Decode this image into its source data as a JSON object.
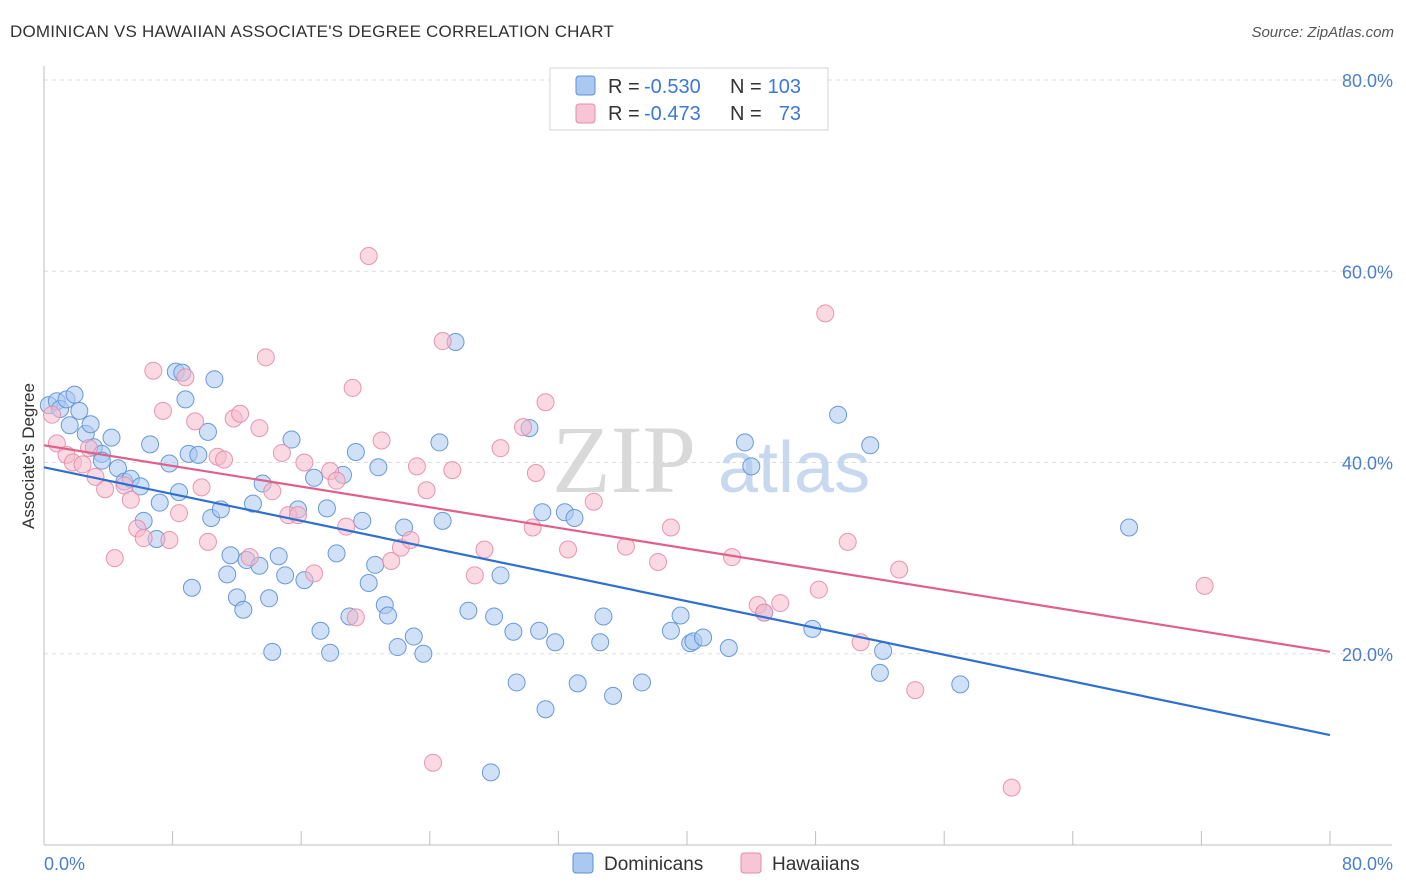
{
  "title": "DOMINICAN VS HAWAIIAN ASSOCIATE'S DEGREE CORRELATION CHART",
  "source": "Source: ZipAtlas.com",
  "colors": {
    "blue_fill": "#aac8f0",
    "blue_stroke": "#5b8fd6",
    "blue_line": "#2f6fd1",
    "pink_fill": "#f7b9cc",
    "pink_stroke": "#e58ba8",
    "pink_line": "#e0608a",
    "grid": "#dddddd",
    "axis_label": "#4a7fd0"
  },
  "legend": {
    "r_label": "R =",
    "n_label": "N =",
    "rows": [
      {
        "r": "-0.530",
        "n": "103"
      },
      {
        "r": "-0.473",
        "n": "73"
      }
    ]
  },
  "watermark": {
    "zip": "ZIP",
    "atlas": "atlas"
  },
  "chart_data": {
    "type": "scatter",
    "title": "DOMINICAN VS HAWAIIAN ASSOCIATE'S DEGREE CORRELATION CHART",
    "xlabel": "",
    "ylabel": "Associate's Degree",
    "xlim": [
      0,
      80
    ],
    "ylim": [
      0,
      80
    ],
    "x_tick_labels": [
      "0.0%",
      "80.0%"
    ],
    "y_tick_labels": [
      "20.0%",
      "40.0%",
      "60.0%",
      "80.0%"
    ],
    "y_ticks": [
      20,
      40,
      60,
      80
    ],
    "grid": true,
    "legend_position": "top-center",
    "series": [
      {
        "name": "Dominicans",
        "color": "#5b8fd6",
        "r": -0.53,
        "n": 103,
        "trend": {
          "x": [
            0,
            80
          ],
          "y": [
            39.5,
            11.5
          ]
        },
        "points": [
          [
            0.3,
            46
          ],
          [
            0.8,
            46.4
          ],
          [
            1,
            45.6
          ],
          [
            1.4,
            46.6
          ],
          [
            1.9,
            47.1
          ],
          [
            2.2,
            45.4
          ],
          [
            1.6,
            43.9
          ],
          [
            2.6,
            43
          ],
          [
            2.9,
            44
          ],
          [
            3.1,
            41.6
          ],
          [
            3.6,
            40.9
          ],
          [
            3.6,
            40.2
          ],
          [
            4.2,
            42.6
          ],
          [
            4.6,
            39.4
          ],
          [
            5,
            38
          ],
          [
            5.4,
            38.3
          ],
          [
            6.2,
            33.9
          ],
          [
            6.6,
            41.9
          ],
          [
            7,
            32
          ],
          [
            7.2,
            35.8
          ],
          [
            7.8,
            39.9
          ],
          [
            8.2,
            49.5
          ],
          [
            8.4,
            36.9
          ],
          [
            8.6,
            49.4
          ],
          [
            8.8,
            46.6
          ],
          [
            9,
            40.9
          ],
          [
            9.6,
            40.8
          ],
          [
            10.2,
            43.2
          ],
          [
            10.4,
            34.2
          ],
          [
            10.6,
            48.7
          ],
          [
            11,
            35.1
          ],
          [
            11.4,
            28.3
          ],
          [
            11.6,
            30.3
          ],
          [
            12,
            25.9
          ],
          [
            12.4,
            24.6
          ],
          [
            12.6,
            29.8
          ],
          [
            13,
            35.7
          ],
          [
            13.4,
            29.2
          ],
          [
            13.6,
            37.8
          ],
          [
            14,
            25.8
          ],
          [
            14.2,
            20.2
          ],
          [
            14.6,
            30.2
          ],
          [
            15,
            28.2
          ],
          [
            15.4,
            42.4
          ],
          [
            15.8,
            35.1
          ],
          [
            16.2,
            27.7
          ],
          [
            16.8,
            38.4
          ],
          [
            17.2,
            22.4
          ],
          [
            17.6,
            35.2
          ],
          [
            17.8,
            20.1
          ],
          [
            18.2,
            30.5
          ],
          [
            18.6,
            38.7
          ],
          [
            19,
            23.9
          ],
          [
            19.4,
            41.1
          ],
          [
            19.8,
            33.9
          ],
          [
            20.2,
            27.4
          ],
          [
            20.6,
            29.3
          ],
          [
            20.8,
            39.5
          ],
          [
            21.2,
            25.1
          ],
          [
            21.4,
            24
          ],
          [
            22,
            20.7
          ],
          [
            22.4,
            33.2
          ],
          [
            23,
            21.8
          ],
          [
            23.6,
            20
          ],
          [
            24.6,
            42.1
          ],
          [
            24.8,
            33.9
          ],
          [
            25.6,
            52.6
          ],
          [
            26.4,
            24.5
          ],
          [
            27.8,
            7.6
          ],
          [
            28,
            23.9
          ],
          [
            28.4,
            28.2
          ],
          [
            29.2,
            22.3
          ],
          [
            29.4,
            17
          ],
          [
            30.2,
            43.6
          ],
          [
            30.8,
            22.4
          ],
          [
            31,
            34.8
          ],
          [
            31.2,
            14.2
          ],
          [
            31.8,
            21.2
          ],
          [
            32.4,
            34.8
          ],
          [
            33,
            34.2
          ],
          [
            33.2,
            16.9
          ],
          [
            34.6,
            21.2
          ],
          [
            34.8,
            23.9
          ],
          [
            35.4,
            15.6
          ],
          [
            37.2,
            17
          ],
          [
            39,
            22.4
          ],
          [
            39.6,
            24
          ],
          [
            40.2,
            21.1
          ],
          [
            40.4,
            21.3
          ],
          [
            41,
            21.7
          ],
          [
            42.6,
            20.6
          ],
          [
            43.6,
            42.1
          ],
          [
            44,
            39.6
          ],
          [
            44.8,
            24.3
          ],
          [
            47.8,
            22.6
          ],
          [
            49.4,
            45
          ],
          [
            51.4,
            41.8
          ],
          [
            52,
            18
          ],
          [
            52.2,
            20.3
          ],
          [
            57,
            16.8
          ],
          [
            67.5,
            33.2
          ],
          [
            9.2,
            26.9
          ],
          [
            6,
            37.5
          ]
        ]
      },
      {
        "name": "Hawaiians",
        "color": "#e58ba8",
        "r": -0.473,
        "n": 73,
        "trend": {
          "x": [
            0,
            80
          ],
          "y": [
            41.8,
            20.2
          ]
        },
        "points": [
          [
            0.5,
            45
          ],
          [
            0.8,
            42
          ],
          [
            1.4,
            40.8
          ],
          [
            1.8,
            40
          ],
          [
            2.4,
            39.8
          ],
          [
            2.8,
            41.5
          ],
          [
            3.2,
            38.5
          ],
          [
            3.8,
            37.2
          ],
          [
            4.4,
            30
          ],
          [
            5,
            37.6
          ],
          [
            5.4,
            36.1
          ],
          [
            5.8,
            33.1
          ],
          [
            6.2,
            32.1
          ],
          [
            6.8,
            49.6
          ],
          [
            7.4,
            45.4
          ],
          [
            7.8,
            31.9
          ],
          [
            8.4,
            34.7
          ],
          [
            8.8,
            48.9
          ],
          [
            9.4,
            44.3
          ],
          [
            9.8,
            37.4
          ],
          [
            10.2,
            31.7
          ],
          [
            10.8,
            40.6
          ],
          [
            11.2,
            40.3
          ],
          [
            11.8,
            44.6
          ],
          [
            12.2,
            45.1
          ],
          [
            12.8,
            30.1
          ],
          [
            13.4,
            43.6
          ],
          [
            13.8,
            51
          ],
          [
            14.2,
            37
          ],
          [
            14.8,
            41
          ],
          [
            15.2,
            34.5
          ],
          [
            15.8,
            34.5
          ],
          [
            16.2,
            40
          ],
          [
            16.8,
            28.4
          ],
          [
            17.8,
            39.1
          ],
          [
            18.2,
            38.1
          ],
          [
            18.8,
            33.3
          ],
          [
            19.2,
            47.8
          ],
          [
            20.2,
            61.6
          ],
          [
            21,
            42.3
          ],
          [
            21.6,
            29.7
          ],
          [
            22.2,
            31.1
          ],
          [
            22.8,
            31.9
          ],
          [
            23.2,
            39.6
          ],
          [
            23.8,
            37.1
          ],
          [
            24.2,
            8.6
          ],
          [
            24.8,
            52.7
          ],
          [
            25.4,
            39.2
          ],
          [
            26.8,
            28.2
          ],
          [
            27.4,
            30.9
          ],
          [
            28.4,
            41.5
          ],
          [
            29.8,
            43.7
          ],
          [
            30.4,
            33.2
          ],
          [
            30.6,
            38.9
          ],
          [
            31.2,
            46.3
          ],
          [
            32.6,
            30.9
          ],
          [
            34.2,
            35.9
          ],
          [
            36.2,
            31.2
          ],
          [
            38.2,
            29.6
          ],
          [
            39,
            33.2
          ],
          [
            42.8,
            30.1
          ],
          [
            44.4,
            25.1
          ],
          [
            44.8,
            24.3
          ],
          [
            45.8,
            25.3
          ],
          [
            48.2,
            26.7
          ],
          [
            48.6,
            55.6
          ],
          [
            50,
            31.7
          ],
          [
            50.8,
            21.2
          ],
          [
            53.2,
            28.8
          ],
          [
            54.2,
            16.2
          ],
          [
            60.2,
            6
          ],
          [
            72.2,
            27.1
          ],
          [
            19.4,
            23.8
          ]
        ]
      }
    ]
  }
}
